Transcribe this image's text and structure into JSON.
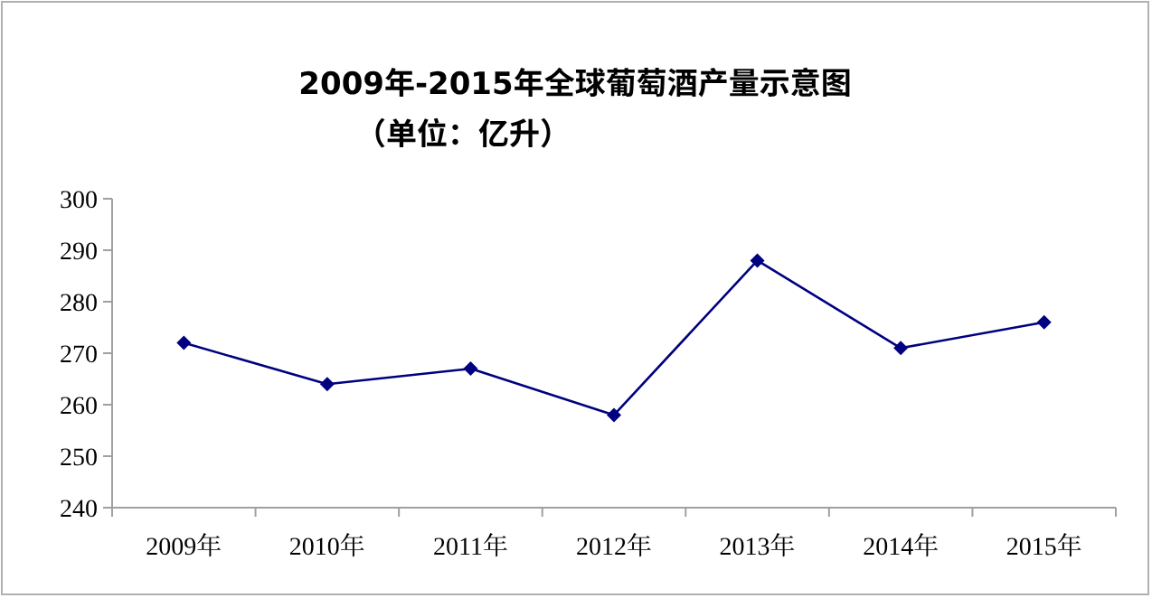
{
  "chart_data": {
    "type": "line",
    "title": "2009年-2015年全球葡萄酒产量示意图",
    "subtitle": "（单位：亿升）",
    "categories": [
      "2009年",
      "2010年",
      "2011年",
      "2012年",
      "2013年",
      "2014年",
      "2015年"
    ],
    "series": [
      {
        "color": "#000080",
        "values": [
          272,
          264,
          267,
          258,
          288,
          271,
          276
        ]
      }
    ],
    "ylim": [
      240,
      300
    ],
    "yticks": [
      240,
      250,
      260,
      270,
      280,
      290,
      300
    ],
    "grid": false,
    "marker": "diamond",
    "line_style": "solid"
  }
}
